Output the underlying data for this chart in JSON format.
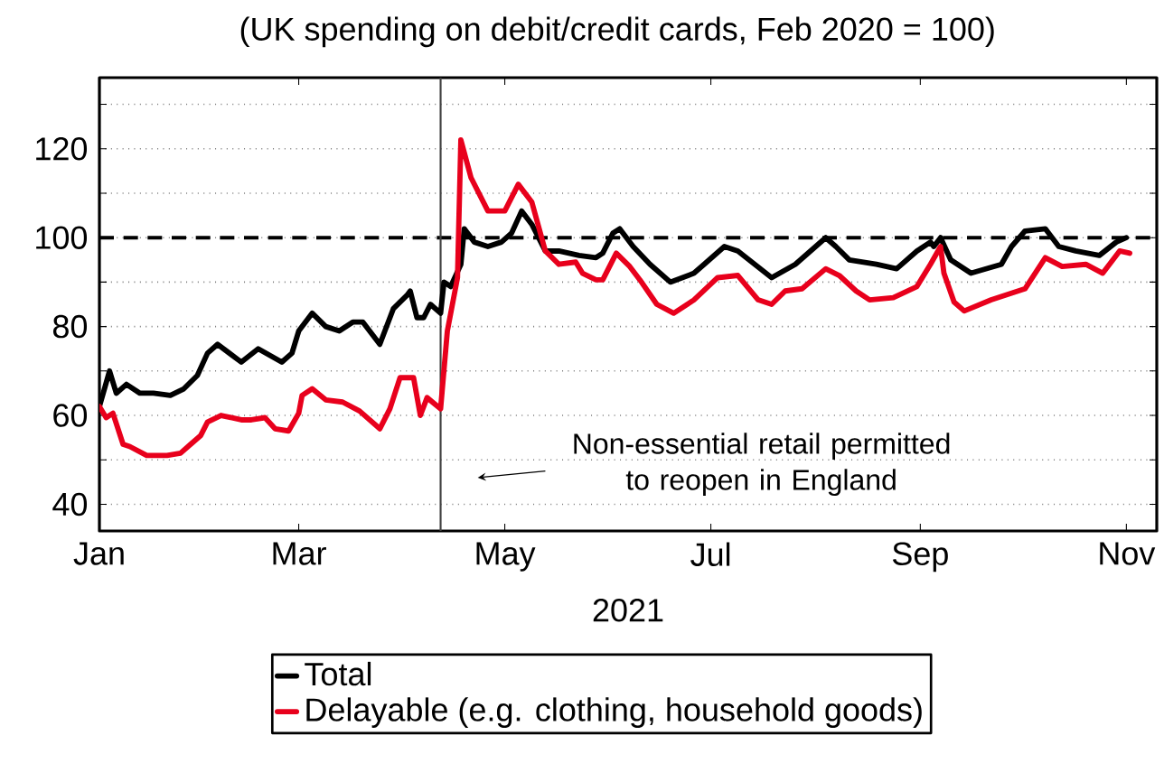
{
  "chart_data": {
    "type": "line",
    "title": "(UK spending on debit/credit cards, Feb 2020 = 100)",
    "xlabel": "2021",
    "xlim": [
      "2021-01-01",
      "2021-11-10"
    ],
    "xticks": [
      {
        "value": "2021-01-01",
        "label": "Jan"
      },
      {
        "value": "2021-03-01",
        "label": "Mar"
      },
      {
        "value": "2021-05-01",
        "label": "May"
      },
      {
        "value": "2021-07-01",
        "label": "Jul"
      },
      {
        "value": "2021-09-01",
        "label": "Sep"
      },
      {
        "value": "2021-11-01",
        "label": "Nov"
      }
    ],
    "ylim": [
      34,
      136
    ],
    "yticks": [
      40,
      {
        "value": 50,
        "label": null
      },
      60,
      {
        "value": 70,
        "label": null
      },
      80,
      {
        "value": 90,
        "label": null
      },
      100,
      {
        "value": 110,
        "label": null
      },
      120,
      {
        "value": 130,
        "label": null
      }
    ],
    "grid": "y",
    "legend": "bottom",
    "marker": "none",
    "line_style": "solid",
    "ref_lines": [
      {
        "axis": "y",
        "value": 100,
        "color": "#000000",
        "line_style": "dashed"
      },
      {
        "axis": "x",
        "value": "2021-04-12",
        "color": "#404040"
      }
    ],
    "annotations": [
      "Non-essential retail permitted to reopen in England"
    ],
    "series": [
      {
        "name": "Total",
        "color": "#000000",
        "x": [
          "2021-01-01",
          "2021-01-04",
          "2021-01-06",
          "2021-01-09",
          "2021-01-13",
          "2021-01-17",
          "2021-01-22",
          "2021-01-26",
          "2021-01-30",
          "2021-02-02",
          "2021-02-05",
          "2021-02-12",
          "2021-02-17",
          "2021-02-24",
          "2021-02-27",
          "2021-03-01",
          "2021-03-05",
          "2021-03-09",
          "2021-03-13",
          "2021-03-17",
          "2021-03-20",
          "2021-03-25",
          "2021-03-29",
          "2021-04-02",
          "2021-04-03",
          "2021-04-05",
          "2021-04-07",
          "2021-04-09",
          "2021-04-12",
          "2021-04-13",
          "2021-04-15",
          "2021-04-18",
          "2021-04-19",
          "2021-04-22",
          "2021-04-26",
          "2021-04-30",
          "2021-05-03",
          "2021-05-06",
          "2021-05-09",
          "2021-05-13",
          "2021-05-17",
          "2021-05-23",
          "2021-05-28",
          "2021-05-30",
          "2021-06-02",
          "2021-06-04",
          "2021-06-08",
          "2021-06-13",
          "2021-06-19",
          "2021-06-26",
          "2021-06-29",
          "2021-07-05",
          "2021-07-09",
          "2021-07-14",
          "2021-07-19",
          "2021-07-26",
          "2021-08-04",
          "2021-08-07",
          "2021-08-11",
          "2021-08-19",
          "2021-08-25",
          "2021-08-31",
          "2021-09-04",
          "2021-09-05",
          "2021-09-07",
          "2021-09-10",
          "2021-09-16",
          "2021-09-25",
          "2021-09-28",
          "2021-10-02",
          "2021-10-08",
          "2021-10-12",
          "2021-10-17",
          "2021-10-24",
          "2021-10-29",
          "2021-11-01"
        ],
        "values": [
          62,
          70,
          65,
          67,
          65,
          65,
          64.5,
          66,
          69,
          74,
          76,
          72,
          75,
          72,
          74,
          79,
          83,
          80,
          79,
          81,
          81,
          76,
          84,
          87,
          88,
          82,
          82,
          85,
          83,
          90,
          89,
          94,
          102,
          99,
          98,
          99,
          101,
          106,
          103,
          97,
          97,
          96,
          95.5,
          96.5,
          101,
          102,
          98,
          94,
          90,
          92,
          94,
          98,
          97,
          94,
          91,
          94,
          100,
          98,
          95,
          94,
          93,
          97,
          99,
          98,
          100,
          95,
          92,
          94,
          98,
          101.5,
          102,
          98,
          97,
          96,
          99,
          100
        ]
      },
      {
        "name": "Delayable (e.g. clothing, household goods)",
        "color": "#e8001c",
        "x": [
          "2021-01-01",
          "2021-01-03",
          "2021-01-05",
          "2021-01-08",
          "2021-01-10",
          "2021-01-15",
          "2021-01-21",
          "2021-01-25",
          "2021-01-28",
          "2021-01-31",
          "2021-02-02",
          "2021-02-06",
          "2021-02-12",
          "2021-02-15",
          "2021-02-19",
          "2021-02-22",
          "2021-02-26",
          "2021-03-01",
          "2021-03-02",
          "2021-03-05",
          "2021-03-09",
          "2021-03-14",
          "2021-03-19",
          "2021-03-25",
          "2021-03-28",
          "2021-03-31",
          "2021-04-04",
          "2021-04-06",
          "2021-04-08",
          "2021-04-12",
          "2021-04-14",
          "2021-04-17",
          "2021-04-18",
          "2021-04-21",
          "2021-04-26",
          "2021-05-01",
          "2021-05-05",
          "2021-05-09",
          "2021-05-13",
          "2021-05-17",
          "2021-05-22",
          "2021-05-24",
          "2021-05-28",
          "2021-05-30",
          "2021-06-03",
          "2021-06-07",
          "2021-06-10",
          "2021-06-15",
          "2021-06-20",
          "2021-06-26",
          "2021-07-03",
          "2021-07-09",
          "2021-07-15",
          "2021-07-19",
          "2021-07-23",
          "2021-07-28",
          "2021-08-04",
          "2021-08-08",
          "2021-08-13",
          "2021-08-17",
          "2021-08-24",
          "2021-08-31",
          "2021-09-04",
          "2021-09-07",
          "2021-09-08",
          "2021-09-11",
          "2021-09-14",
          "2021-09-22",
          "2021-10-02",
          "2021-10-08",
          "2021-10-13",
          "2021-10-20",
          "2021-10-25",
          "2021-10-30",
          "2021-11-02"
        ],
        "values": [
          62,
          59.5,
          60.5,
          53.5,
          53,
          51,
          51,
          51.5,
          53.5,
          55.5,
          58.5,
          60,
          59,
          59,
          59.5,
          57,
          56.5,
          60.5,
          64.5,
          66,
          63.5,
          63,
          61,
          57,
          61.5,
          68.5,
          68.5,
          60,
          64,
          61.5,
          79,
          91,
          122,
          113.5,
          106,
          106,
          112,
          108,
          97,
          94,
          94.5,
          92,
          90.5,
          90.5,
          96.5,
          93.5,
          90.5,
          85,
          83,
          86,
          91,
          91.5,
          86,
          85,
          88,
          88.5,
          93,
          91.5,
          88,
          86,
          86.5,
          89,
          94,
          98,
          92,
          85.5,
          83.5,
          86,
          88.5,
          95.5,
          93.5,
          94,
          92,
          97,
          96.5
        ]
      }
    ]
  }
}
